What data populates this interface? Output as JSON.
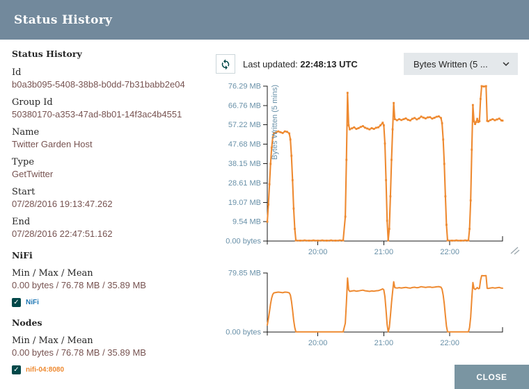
{
  "dialog": {
    "title": "Status History"
  },
  "icons": {
    "checkmark": "✓"
  },
  "colors": {
    "header_bg": "#72899C",
    "close_bg": "#7A95A2",
    "label_text": "#262626",
    "value_text": "#775351",
    "checkbox_teal": "#004849",
    "legend_nifi": "#1F77B4",
    "legend_node": "#EE8A31",
    "axis_label": "#6890A8",
    "line": "#EE8A31"
  },
  "details": {
    "heading": "Status History",
    "fields": [
      {
        "label": "Id",
        "value": "b0a3b095-5408-38b8-b0dd-7b31babb2e04"
      },
      {
        "label": "Group Id",
        "value": "50380170-a353-47ad-8b01-14f3ac4b4551"
      },
      {
        "label": "Name",
        "value": "Twitter Garden Host"
      },
      {
        "label": "Type",
        "value": "GetTwitter"
      },
      {
        "label": "Start",
        "value": "07/28/2016 19:13:47.262"
      },
      {
        "label": "End",
        "value": "07/28/2016 22:47:51.162"
      }
    ],
    "nifi_section": {
      "heading": "NiFi",
      "stat_label": "Min / Max / Mean",
      "stat_value": "0.00 bytes / 76.78 MB / 35.89 MB",
      "legend": {
        "label": "NiFi",
        "checked": true,
        "color": "#1F77B4"
      }
    },
    "nodes_section": {
      "heading": "Nodes",
      "stat_label": "Min / Max / Mean",
      "stat_value": "0.00 bytes / 76.78 MB / 35.89 MB",
      "legend": {
        "label": "nifi-04:8080",
        "checked": true,
        "color": "#EE8A31"
      }
    }
  },
  "toolbar": {
    "last_updated_label": "Last updated:",
    "last_updated_value": "22:48:13 UTC",
    "metric_select": "Bytes Written (5 ..."
  },
  "footer": {
    "close_label": "CLOSE"
  },
  "chart_data": {
    "type": "line",
    "ylabel": "Bytes Written (5 mins)",
    "x_domain_minutes": [
      1154,
      1368
    ],
    "x_domain_labels": [
      "19:13",
      "22:48"
    ],
    "x_ticks": [
      {
        "minute": 1200,
        "label": "20:00"
      },
      {
        "minute": 1260,
        "label": "21:00"
      },
      {
        "minute": 1320,
        "label": "22:00"
      }
    ],
    "main_chart": {
      "y_max_mb": 76.29,
      "y_tick_values_mb": [
        0,
        9.54,
        19.07,
        28.61,
        38.15,
        47.68,
        57.22,
        66.76,
        76.29
      ],
      "y_tick_labels": [
        "0.00 bytes",
        "9.54 MB",
        "19.07 MB",
        "28.61 MB",
        "38.15 MB",
        "47.68 MB",
        "57.22 MB",
        "66.76 MB",
        "76.29 MB"
      ]
    },
    "mini_chart": {
      "y_max_mb": 79.85,
      "y_tick_values_mb": [
        0,
        79.85
      ],
      "y_tick_labels": [
        "0.00 bytes",
        "79.85 MB"
      ]
    },
    "legend_series": [
      "NiFi",
      "nifi-04:8080"
    ],
    "visible_series": "nifi-04:8080",
    "line_color": "#EE8A31",
    "points_minute_mb": [
      [
        1154,
        9.5
      ],
      [
        1155,
        18
      ],
      [
        1156,
        28
      ],
      [
        1157,
        38
      ],
      [
        1158,
        46
      ],
      [
        1159,
        51
      ],
      [
        1160,
        53
      ],
      [
        1162,
        53.5
      ],
      [
        1164,
        54
      ],
      [
        1166,
        53.6
      ],
      [
        1168,
        53.2
      ],
      [
        1170,
        54
      ],
      [
        1172,
        53.8
      ],
      [
        1174,
        53
      ],
      [
        1175,
        50
      ],
      [
        1176,
        42
      ],
      [
        1177,
        30
      ],
      [
        1178,
        16
      ],
      [
        1179,
        6
      ],
      [
        1180,
        0.3
      ],
      [
        1184,
        0.2
      ],
      [
        1188,
        0.3
      ],
      [
        1192,
        0.2
      ],
      [
        1196,
        0.3
      ],
      [
        1200,
        0.2
      ],
      [
        1204,
        0.3
      ],
      [
        1208,
        0.2
      ],
      [
        1212,
        0.3
      ],
      [
        1216,
        0.2
      ],
      [
        1220,
        0.3
      ],
      [
        1223,
        0.3
      ],
      [
        1225,
        12
      ],
      [
        1226,
        40
      ],
      [
        1227,
        73
      ],
      [
        1228,
        57
      ],
      [
        1229,
        55
      ],
      [
        1231,
        55.5
      ],
      [
        1233,
        56
      ],
      [
        1235,
        55.2
      ],
      [
        1237,
        55.6
      ],
      [
        1239,
        56.2
      ],
      [
        1241,
        56.6
      ],
      [
        1243,
        55.8
      ],
      [
        1245,
        55.4
      ],
      [
        1247,
        55
      ],
      [
        1249,
        55.6
      ],
      [
        1251,
        55.2
      ],
      [
        1253,
        55.8
      ],
      [
        1255,
        56
      ],
      [
        1257,
        57
      ],
      [
        1259,
        58.3
      ],
      [
        1260,
        57
      ],
      [
        1261,
        48
      ],
      [
        1262,
        30
      ],
      [
        1263,
        10
      ],
      [
        1264,
        0.3
      ],
      [
        1265,
        6
      ],
      [
        1266,
        22
      ],
      [
        1267,
        40
      ],
      [
        1268,
        55
      ],
      [
        1269,
        68
      ],
      [
        1270,
        60
      ],
      [
        1272,
        59.5
      ],
      [
        1274,
        60
      ],
      [
        1276,
        59.6
      ],
      [
        1278,
        60
      ],
      [
        1280,
        60.4
      ],
      [
        1282,
        59.7
      ],
      [
        1284,
        59.4
      ],
      [
        1286,
        60.2
      ],
      [
        1288,
        60.6
      ],
      [
        1290,
        59.9
      ],
      [
        1292,
        60.4
      ],
      [
        1294,
        61.3
      ],
      [
        1296,
        60.8
      ],
      [
        1298,
        60.4
      ],
      [
        1300,
        60.9
      ],
      [
        1302,
        61
      ],
      [
        1304,
        60.3
      ],
      [
        1306,
        60.7
      ],
      [
        1308,
        61.2
      ],
      [
        1310,
        61.4
      ],
      [
        1312,
        60.6
      ],
      [
        1313,
        58
      ],
      [
        1314,
        50
      ],
      [
        1315,
        38
      ],
      [
        1316,
        22
      ],
      [
        1317,
        8
      ],
      [
        1318,
        0.3
      ],
      [
        1322,
        0.2
      ],
      [
        1326,
        0.3
      ],
      [
        1330,
        0.2
      ],
      [
        1334,
        0.3
      ],
      [
        1337,
        0.3
      ],
      [
        1338,
        6
      ],
      [
        1339,
        20
      ],
      [
        1340,
        45
      ],
      [
        1341,
        67
      ],
      [
        1342,
        59
      ],
      [
        1343,
        57.6
      ],
      [
        1344,
        58.6
      ],
      [
        1345,
        60.2
      ],
      [
        1346,
        58.6
      ],
      [
        1347,
        59
      ],
      [
        1348,
        70
      ],
      [
        1349,
        76.3
      ],
      [
        1351,
        76.1
      ],
      [
        1353,
        76.3
      ],
      [
        1354,
        59.2
      ],
      [
        1355,
        59
      ],
      [
        1357,
        59.6
      ],
      [
        1359,
        60
      ],
      [
        1361,
        59.5
      ],
      [
        1363,
        59.9
      ],
      [
        1365,
        60.3
      ],
      [
        1367,
        59.4
      ],
      [
        1368,
        59.3
      ]
    ]
  }
}
